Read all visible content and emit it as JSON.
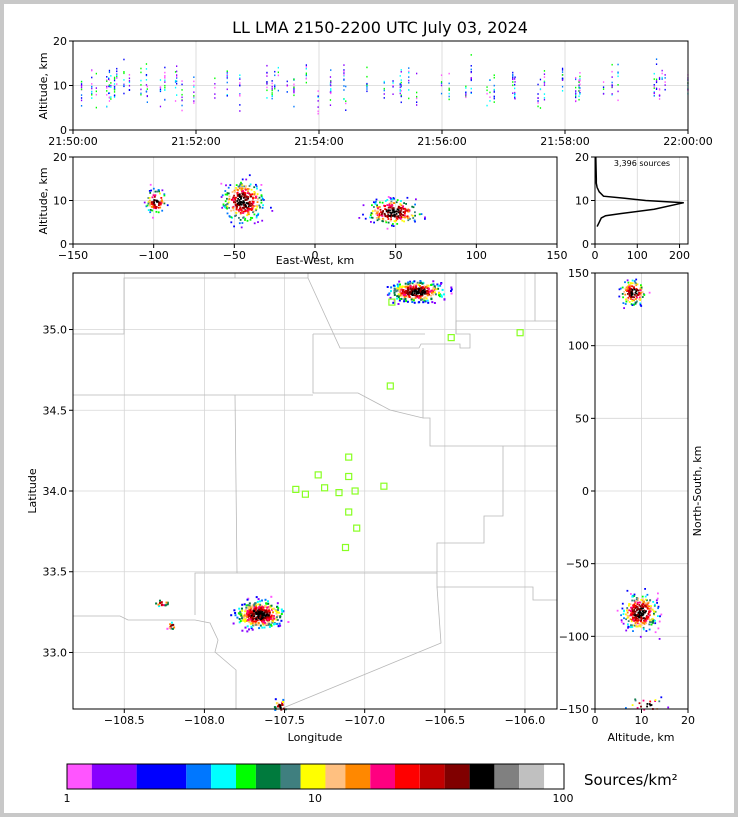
{
  "figure": {
    "title": "LL LMA 2150-2200 UTC July 03, 2024",
    "colorbar_label": "Sources/km²",
    "colorbar_ticks": [
      "1",
      "10",
      "100"
    ],
    "colors": [
      "#ff55ff",
      "#8800ff",
      "#0000ff",
      "#0077ff",
      "#00ffff",
      "#00ff00",
      "#007a3d",
      "#3f7f7f",
      "#ffff00",
      "#ffc080",
      "#ff8800",
      "#ff0080",
      "#ff0000",
      "#c00000",
      "#800000",
      "#000000",
      "#808080",
      "#c0c0c0",
      "#ffffff"
    ],
    "station_color": "#88ff22"
  },
  "chart_data": [
    {
      "name": "time-height",
      "type": "scatter",
      "ylabel": "Altitude, km",
      "ylim": [
        0,
        20
      ],
      "yticks": [
        "0",
        "10",
        "20"
      ],
      "xticks": [
        "21:50:00",
        "21:52:00",
        "21:54:00",
        "21:56:00",
        "21:58:00",
        "22:00:00"
      ],
      "xlim_minutes": [
        0,
        10
      ],
      "grid": true
    },
    {
      "name": "east-west-height",
      "type": "scatter",
      "xlabel": "East-West, km",
      "ylabel": "Altitude, km",
      "xlim": [
        -150,
        150
      ],
      "ylim": [
        0,
        20
      ],
      "xticks": [
        "−150",
        "−100",
        "−50",
        "0",
        "50",
        "100",
        "150"
      ],
      "yticks": [
        "0",
        "10",
        "20"
      ],
      "clusters": [
        {
          "x": -99,
          "alt": 10,
          "sx": 3,
          "sy": 1.3,
          "n": 90
        },
        {
          "x": -45,
          "alt": 10,
          "sx": 6,
          "sy": 2.2,
          "n": 320
        },
        {
          "x": 48,
          "alt": 7.5,
          "sx": 8,
          "sy": 1.4,
          "n": 240
        }
      ]
    },
    {
      "name": "altitude-histogram",
      "type": "line",
      "annotation": "3,396 sources",
      "xlim": [
        0,
        220
      ],
      "ylim": [
        0,
        20
      ],
      "xticks": [
        "0",
        "100",
        "200"
      ],
      "yticks": [
        "0",
        "10",
        "20"
      ],
      "x": [
        5,
        10,
        15,
        25,
        60,
        140,
        210,
        120,
        70,
        20,
        10,
        5,
        3,
        3,
        2
      ],
      "y": [
        4,
        5,
        6,
        6.5,
        7,
        8,
        9.5,
        10,
        10.5,
        11,
        12,
        13,
        14,
        15,
        20
      ]
    },
    {
      "name": "plan-view",
      "type": "scatter",
      "xlabel": "Longitude",
      "ylabel": "Latitude",
      "xlim": [
        -108.82,
        -105.8
      ],
      "ylim": [
        32.65,
        35.35
      ],
      "xticks": [
        "−108.5",
        "−108.0",
        "−107.5",
        "−107.0",
        "−106.5",
        "−106.0"
      ],
      "yticks": [
        "33.0",
        "33.5",
        "34.0",
        "34.5",
        "35.0"
      ],
      "clusters": [
        {
          "lon": -106.68,
          "lat": 35.24,
          "slon": 0.08,
          "slat": 0.03,
          "n": 320
        },
        {
          "lon": -107.66,
          "lat": 33.24,
          "slon": 0.07,
          "slat": 0.04,
          "n": 380
        },
        {
          "lon": -108.27,
          "lat": 33.31,
          "slon": 0.02,
          "slat": 0.01,
          "n": 15
        },
        {
          "lon": -108.21,
          "lat": 33.17,
          "slon": 0.015,
          "slat": 0.01,
          "n": 12
        },
        {
          "lon": -107.53,
          "lat": 32.67,
          "slon": 0.02,
          "slat": 0.02,
          "n": 30
        }
      ],
      "stations": [
        [
          -106.83,
          35.17
        ],
        [
          -106.46,
          34.95
        ],
        [
          -106.03,
          34.98
        ],
        [
          -106.84,
          34.65
        ],
        [
          -107.1,
          34.21
        ],
        [
          -107.1,
          34.09
        ],
        [
          -107.29,
          34.1
        ],
        [
          -107.43,
          34.01
        ],
        [
          -107.37,
          33.98
        ],
        [
          -107.25,
          34.02
        ],
        [
          -107.16,
          33.99
        ],
        [
          -107.06,
          34.0
        ],
        [
          -106.88,
          34.03
        ],
        [
          -107.1,
          33.87
        ],
        [
          -107.05,
          33.77
        ],
        [
          -107.12,
          33.65
        ]
      ]
    },
    {
      "name": "north-south-height",
      "type": "scatter",
      "xlabel": "Altitude, km",
      "ylabel": "North-South, km",
      "xlim": [
        0,
        20
      ],
      "ylim": [
        -150,
        150
      ],
      "xticks": [
        "0",
        "10",
        "20"
      ],
      "yticks": [
        "−150",
        "−100",
        "−50",
        "0",
        "50",
        "100",
        "150"
      ],
      "clusters": [
        {
          "alt": 8,
          "ns": 137,
          "sa": 1.3,
          "sn": 4,
          "n": 150
        },
        {
          "alt": 9.5,
          "ns": -83,
          "sa": 1.8,
          "sn": 6,
          "n": 320
        },
        {
          "alt": 11,
          "ns": -147,
          "sa": 2,
          "sn": 3,
          "n": 30
        }
      ]
    }
  ]
}
